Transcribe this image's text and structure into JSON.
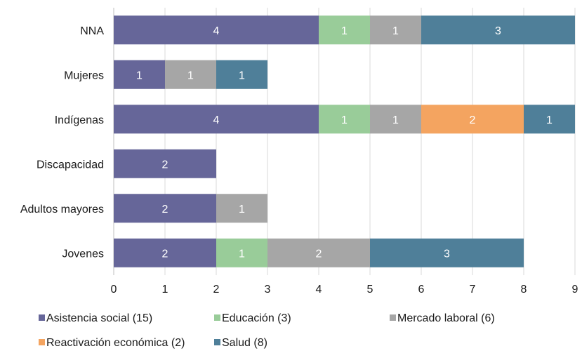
{
  "chart_data": {
    "type": "bar",
    "orientation": "horizontal",
    "stacked": true,
    "categories": [
      "NNA",
      "Mujeres",
      "Indígenas",
      "Discapacidad",
      "Adultos mayores",
      "Jovenes"
    ],
    "series": [
      {
        "name": "Asistencia social (15)",
        "color": "#666699",
        "values": [
          4,
          1,
          4,
          2,
          2,
          2
        ]
      },
      {
        "name": "Educación (3)",
        "color": "#99cc99",
        "values": [
          1,
          0,
          1,
          0,
          0,
          1
        ]
      },
      {
        "name": "Mercado laboral (6)",
        "color": "#a6a6a6",
        "values": [
          1,
          1,
          1,
          0,
          1,
          2
        ]
      },
      {
        "name": "Reactivación económica (2)",
        "color": "#f4a460",
        "values": [
          0,
          0,
          2,
          0,
          0,
          0
        ]
      },
      {
        "name": "Salud (8)",
        "color": "#4f7f99",
        "values": [
          3,
          1,
          1,
          0,
          0,
          3
        ]
      }
    ],
    "xlim": [
      0,
      9
    ],
    "xticks": [
      "0",
      "1",
      "2",
      "3",
      "4",
      "5",
      "6",
      "7",
      "8",
      "9"
    ],
    "grid": true,
    "legend_position": "bottom",
    "data_labels": true,
    "xlabel": "",
    "ylabel": "",
    "title": ""
  }
}
